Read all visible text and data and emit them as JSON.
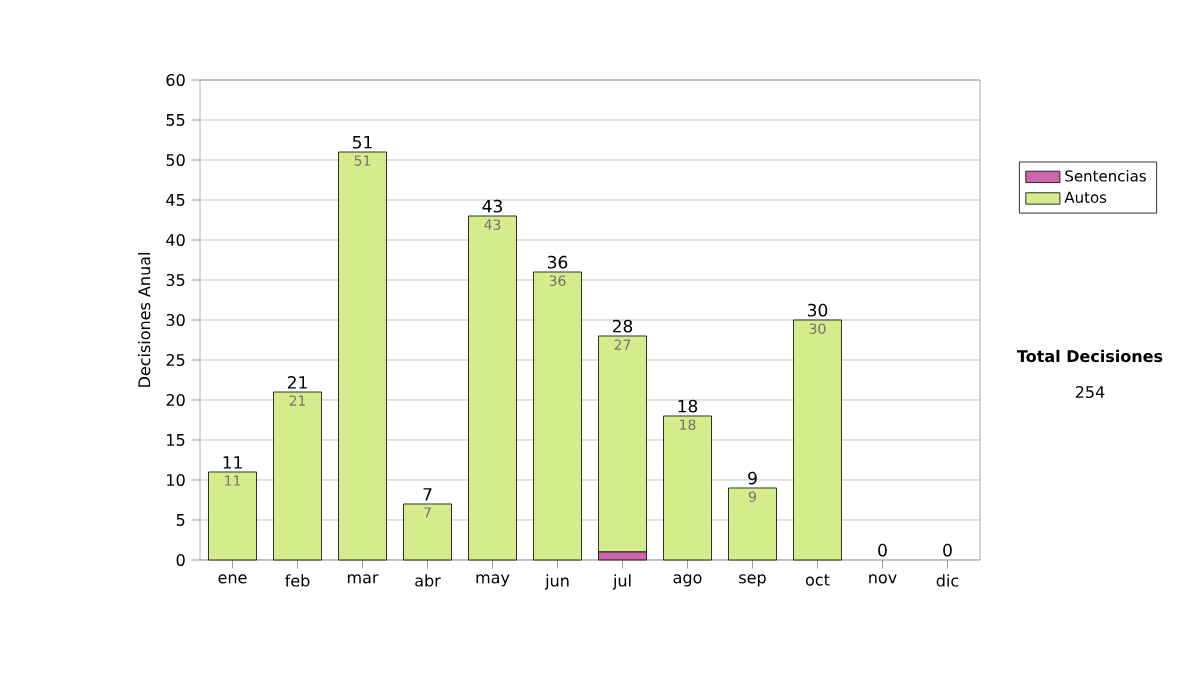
{
  "chart_data": {
    "type": "bar",
    "stacked": true,
    "ylabel": "Decisiones Anual",
    "categories": [
      "ene",
      "feb",
      "mar",
      "abr",
      "may",
      "jun",
      "jul",
      "ago",
      "sep",
      "oct",
      "nov",
      "dic"
    ],
    "series": [
      {
        "name": "Sentencias",
        "color": "#cc66aa",
        "values": [
          0,
          0,
          0,
          0,
          0,
          0,
          1,
          0,
          0,
          0,
          0,
          0
        ]
      },
      {
        "name": "Autos",
        "color": "#d4ec8c",
        "values": [
          11,
          21,
          51,
          7,
          43,
          36,
          27,
          18,
          9,
          30,
          0,
          0
        ],
        "value_labels": [
          "11",
          "21",
          "51",
          "7",
          "43",
          "36",
          "27",
          "18",
          "9",
          "30",
          null,
          null
        ]
      }
    ],
    "totals": [
      "11",
      "21",
      "51",
      "7",
      "43",
      "36",
      "28",
      "18",
      "9",
      "30",
      "0",
      "0"
    ],
    "ylim": [
      0,
      60
    ],
    "yticks": [
      0,
      5,
      10,
      15,
      20,
      25,
      30,
      35,
      40,
      45,
      50,
      55,
      60
    ],
    "grid": "y",
    "legend": "right",
    "annotations": [
      "Total Decisiones",
      "254"
    ]
  }
}
